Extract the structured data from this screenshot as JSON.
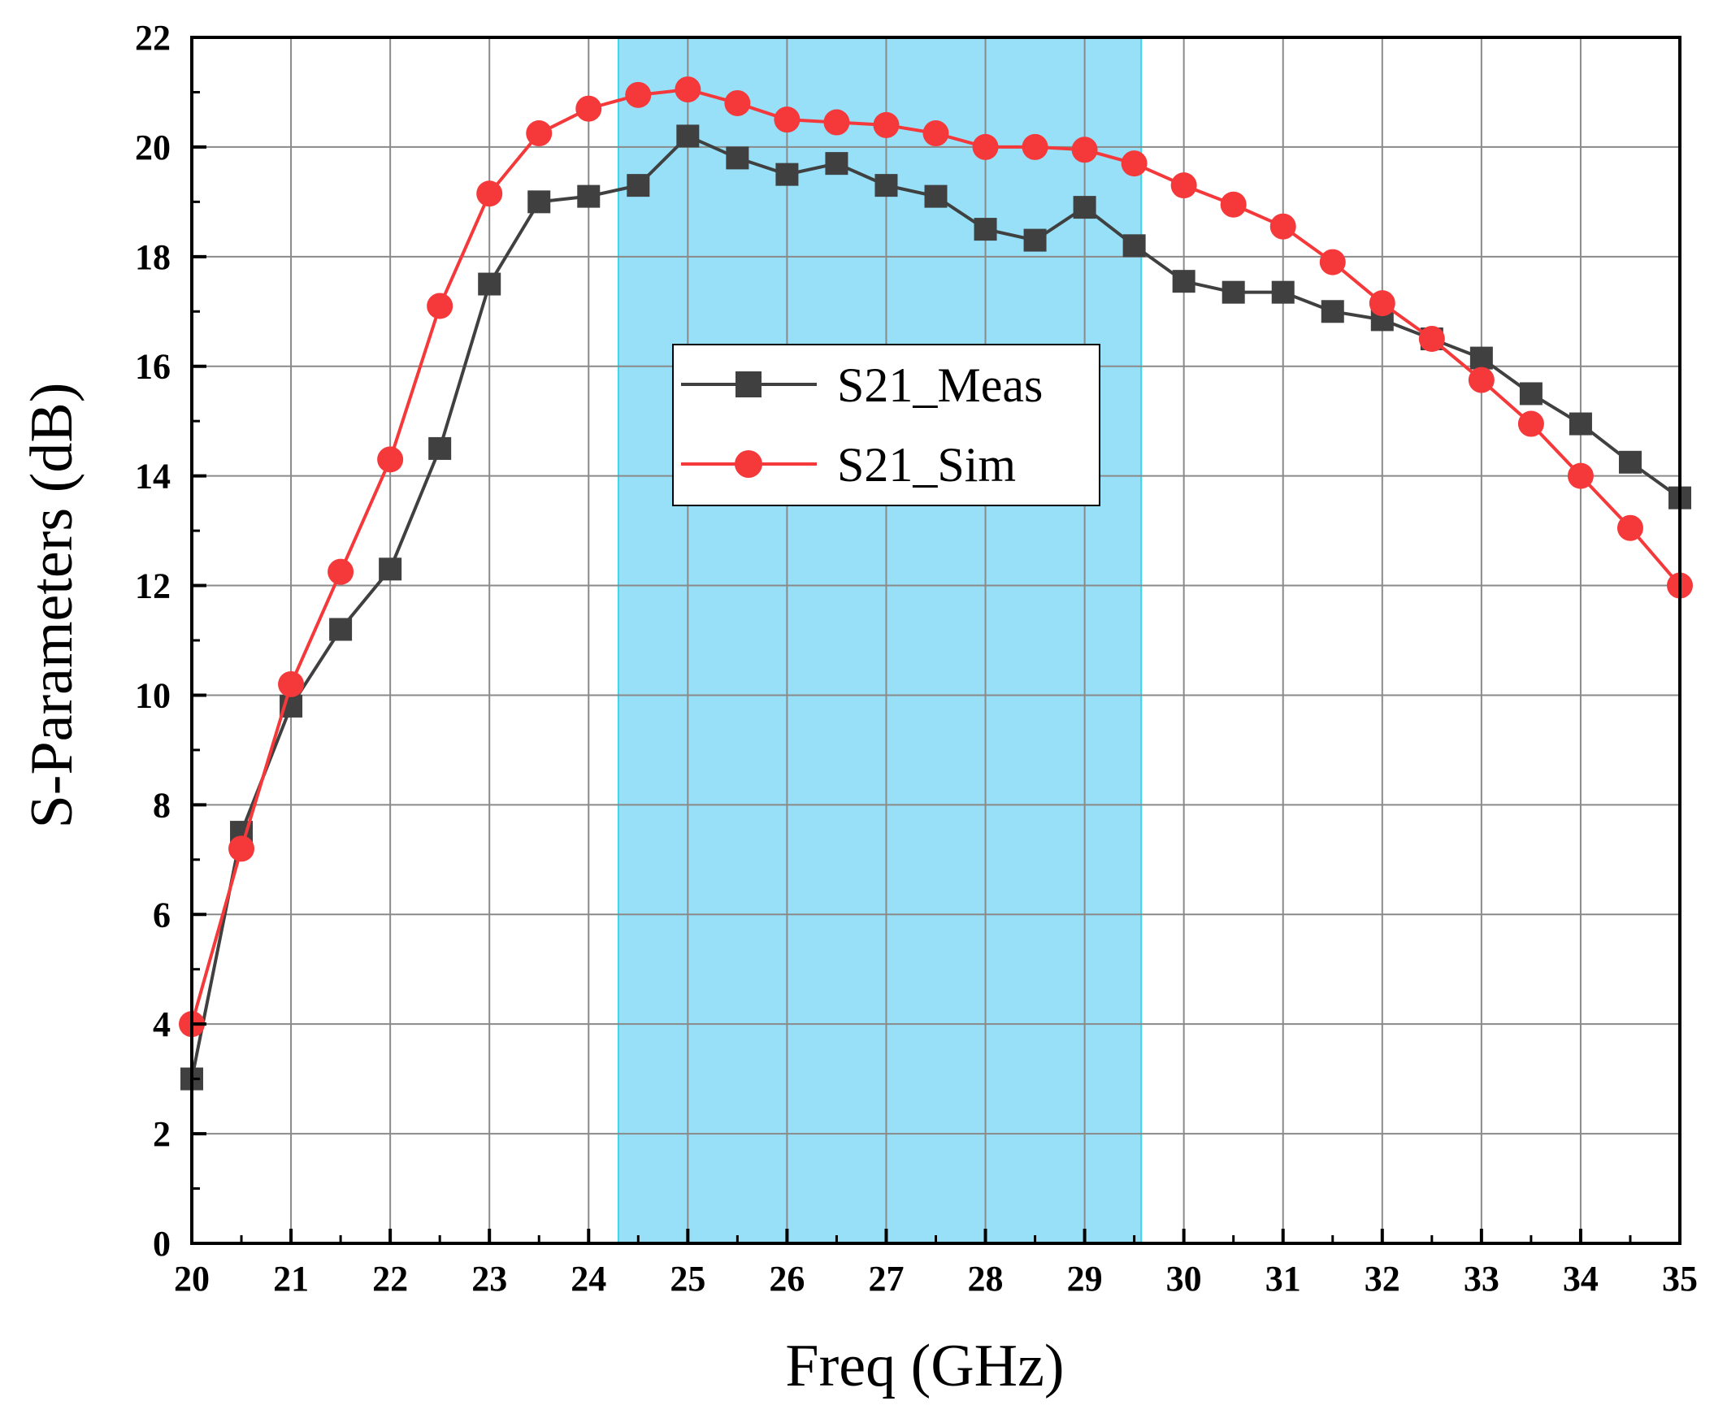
{
  "chart_data": {
    "type": "line",
    "title": "",
    "xlabel": "Freq (GHz)",
    "ylabel": "S-Parameters (dB)",
    "xlim": [
      20,
      35
    ],
    "ylim": [
      0,
      22
    ],
    "x_ticks": [
      20,
      21,
      22,
      23,
      24,
      25,
      26,
      27,
      28,
      29,
      30,
      31,
      32,
      33,
      34,
      35
    ],
    "y_ticks": [
      0,
      2,
      4,
      6,
      8,
      10,
      12,
      14,
      16,
      18,
      20,
      22
    ],
    "grid": true,
    "legend_position": "center",
    "highlight_band": {
      "x_start": 24.3,
      "x_end": 29.57,
      "color": "#7dd8f6"
    },
    "x": [
      20,
      20.5,
      21,
      21.5,
      22,
      22.5,
      23,
      23.5,
      24,
      24.5,
      25,
      25.5,
      26,
      26.5,
      27,
      27.5,
      28,
      28.5,
      29,
      29.5,
      30,
      30.5,
      31,
      31.5,
      32,
      32.5,
      33,
      33.5,
      34,
      34.5,
      35
    ],
    "series": [
      {
        "name": "S21_Meas",
        "marker": "square",
        "color": "#404040",
        "values": [
          3.0,
          7.5,
          9.8,
          11.2,
          12.3,
          14.5,
          17.5,
          19.0,
          19.1,
          19.3,
          20.2,
          19.8,
          19.5,
          19.7,
          19.3,
          19.1,
          18.5,
          18.3,
          18.9,
          18.2,
          17.55,
          17.35,
          17.35,
          17.0,
          16.85,
          16.5,
          16.15,
          15.5,
          14.95,
          14.25,
          13.6
        ]
      },
      {
        "name": "S21_Sim",
        "marker": "circle",
        "color": "#f5383a",
        "values": [
          4.0,
          7.2,
          10.2,
          12.25,
          14.3,
          17.1,
          19.15,
          20.25,
          20.7,
          20.95,
          21.05,
          20.8,
          20.5,
          20.45,
          20.4,
          20.25,
          20.0,
          20.0,
          19.95,
          19.7,
          19.3,
          18.95,
          18.55,
          17.9,
          17.15,
          16.5,
          15.75,
          14.95,
          14.0,
          13.05,
          12.0
        ]
      }
    ]
  }
}
